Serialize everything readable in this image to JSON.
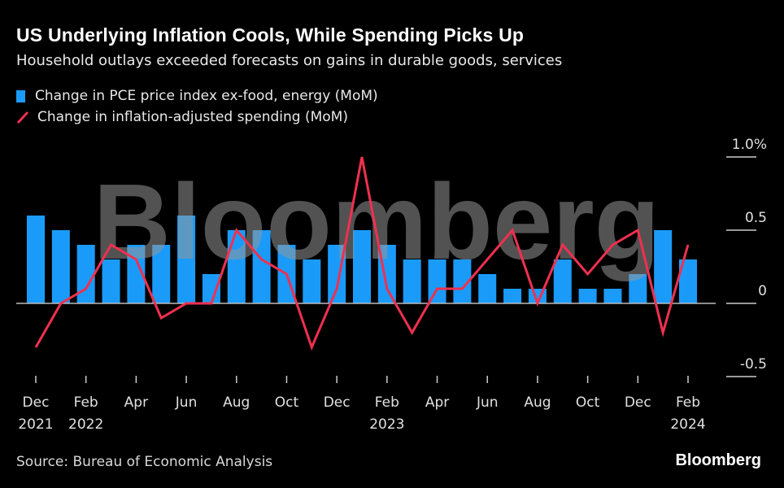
{
  "header": {
    "title": "US Underlying Inflation Cools, While Spending Picks Up",
    "subtitle": "Household outlays exceeded forecasts on gains in durable goods, services"
  },
  "footer": {
    "source": "Source: Bureau of Economic Analysis",
    "brand": "Bloomberg"
  },
  "watermark": "Bloomberg",
  "colors": {
    "bar": "#1a9bfa",
    "line": "#f0304f",
    "background": "#000000"
  },
  "chart_data": {
    "type": "bar+line",
    "title": "US Underlying Inflation Cools, While Spending Picks Up",
    "subtitle": "Household outlays exceeded forecasts on gains in durable goods, services",
    "legend_position": "top-left",
    "months": [
      "Dec 2021",
      "Jan 2022",
      "Feb 2022",
      "Mar 2022",
      "Apr 2022",
      "May 2022",
      "Jun 2022",
      "Jul 2022",
      "Aug 2022",
      "Sep 2022",
      "Oct 2022",
      "Nov 2022",
      "Dec 2022",
      "Jan 2023",
      "Feb 2023",
      "Mar 2023",
      "Apr 2023",
      "May 2023",
      "Jun 2023",
      "Jul 2023",
      "Aug 2023",
      "Sep 2023",
      "Oct 2023",
      "Nov 2023",
      "Dec 2023",
      "Jan 2024",
      "Feb 2024"
    ],
    "series": [
      {
        "name": "Change in PCE price index ex-food, energy (MoM)",
        "type": "bar",
        "values": [
          0.6,
          0.5,
          0.4,
          0.3,
          0.4,
          0.4,
          0.6,
          0.2,
          0.5,
          0.5,
          0.4,
          0.3,
          0.4,
          0.5,
          0.4,
          0.3,
          0.3,
          0.3,
          0.2,
          0.1,
          0.1,
          0.3,
          0.1,
          0.1,
          0.2,
          0.5,
          0.3
        ]
      },
      {
        "name": "Change in inflation-adjusted spending (MoM)",
        "type": "line",
        "values": [
          -0.3,
          0.0,
          0.1,
          0.4,
          0.3,
          -0.1,
          0.0,
          0.0,
          0.5,
          0.3,
          0.2,
          -0.3,
          0.1,
          1.0,
          0.1,
          -0.2,
          0.1,
          0.1,
          0.3,
          0.5,
          0.0,
          0.4,
          0.2,
          0.4,
          0.5,
          -0.2,
          0.4
        ]
      }
    ],
    "x_ticks": [
      {
        "month": "Dec 2021",
        "label": "Dec",
        "year": "2021"
      },
      {
        "month": "Feb 2022",
        "label": "Feb",
        "year": "2022"
      },
      {
        "month": "Apr 2022",
        "label": "Apr",
        "year": ""
      },
      {
        "month": "Jun 2022",
        "label": "Jun",
        "year": ""
      },
      {
        "month": "Aug 2022",
        "label": "Aug",
        "year": ""
      },
      {
        "month": "Oct 2022",
        "label": "Oct",
        "year": ""
      },
      {
        "month": "Dec 2022",
        "label": "Dec",
        "year": ""
      },
      {
        "month": "Feb 2023",
        "label": "Feb",
        "year": "2023"
      },
      {
        "month": "Apr 2023",
        "label": "Apr",
        "year": ""
      },
      {
        "month": "Jun 2023",
        "label": "Jun",
        "year": ""
      },
      {
        "month": "Aug 2023",
        "label": "Aug",
        "year": ""
      },
      {
        "month": "Oct 2023",
        "label": "Oct",
        "year": ""
      },
      {
        "month": "Dec 2023",
        "label": "Dec",
        "year": ""
      },
      {
        "month": "Feb 2024",
        "label": "Feb",
        "year": "2024"
      }
    ],
    "y_ticks": [
      {
        "value": 1.0,
        "label": "1.0%"
      },
      {
        "value": 0.5,
        "label": "0.5"
      },
      {
        "value": 0,
        "label": "0"
      },
      {
        "value": -0.5,
        "label": "-0.5"
      }
    ],
    "ylim": [
      -0.5,
      1.0
    ],
    "grid": false
  }
}
